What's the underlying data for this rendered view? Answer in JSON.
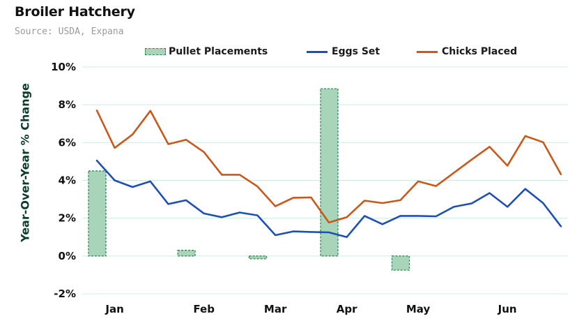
{
  "header": {
    "title": "Broiler Hatchery",
    "subtitle": "Source: USDA, Expana"
  },
  "legend": [
    {
      "label": "Pullet Placements",
      "kind": "bar",
      "color": "#a8d5b9",
      "stroke": "#2e8b57"
    },
    {
      "label": "Eggs Set",
      "kind": "line",
      "color": "#1f4fb5"
    },
    {
      "label": "Chicks Placed",
      "kind": "line",
      "color": "#c8591a"
    }
  ],
  "chart_data": {
    "type": "line",
    "title": "Broiler Hatchery",
    "subtitle": "Source: USDA, Expana",
    "ylabel": "Year-Over-Year % Change",
    "xlabel": "",
    "ylim": [
      -2,
      10
    ],
    "yticks": [
      -2,
      0,
      2,
      4,
      6,
      8,
      10
    ],
    "ytick_labels": [
      "-2%",
      "0%",
      "2%",
      "4%",
      "6%",
      "8%",
      "10%"
    ],
    "grid": true,
    "legend_position": "top",
    "xtick_labels": [
      "Jan",
      "Feb",
      "Mar",
      "Apr",
      "May",
      "Jun"
    ],
    "weeks": 26,
    "month_start_weeks": [
      1,
      6,
      10,
      14,
      18,
      23
    ],
    "series": [
      {
        "name": "Eggs Set",
        "type": "line",
        "color": "#1f4fb5",
        "values": [
          5.05,
          4.0,
          3.65,
          3.95,
          2.75,
          2.95,
          2.25,
          2.05,
          2.3,
          2.15,
          1.1,
          1.3,
          1.27,
          1.25,
          1.0,
          2.12,
          1.68,
          2.12,
          2.12,
          2.1,
          2.6,
          2.78,
          3.33,
          2.6,
          3.55,
          2.8,
          1.57
        ]
      },
      {
        "name": "Chicks Placed",
        "type": "line",
        "color": "#c8591a",
        "values": [
          7.7,
          5.72,
          6.43,
          7.68,
          5.92,
          6.15,
          5.5,
          4.3,
          4.3,
          3.68,
          2.63,
          3.08,
          3.1,
          1.77,
          2.05,
          2.93,
          2.8,
          2.95,
          3.95,
          3.7,
          4.4,
          5.1,
          5.78,
          4.78,
          6.35,
          6.02,
          4.32
        ]
      },
      {
        "name": "Pullet Placements",
        "type": "bar",
        "color": "#a8d5b9",
        "points": [
          {
            "week": 0,
            "value": 4.5
          },
          {
            "week": 5,
            "value": 0.3
          },
          {
            "week": 9,
            "value": -0.15
          },
          {
            "week": 13,
            "value": 8.85
          },
          {
            "week": 17,
            "value": -0.75
          }
        ]
      }
    ]
  }
}
